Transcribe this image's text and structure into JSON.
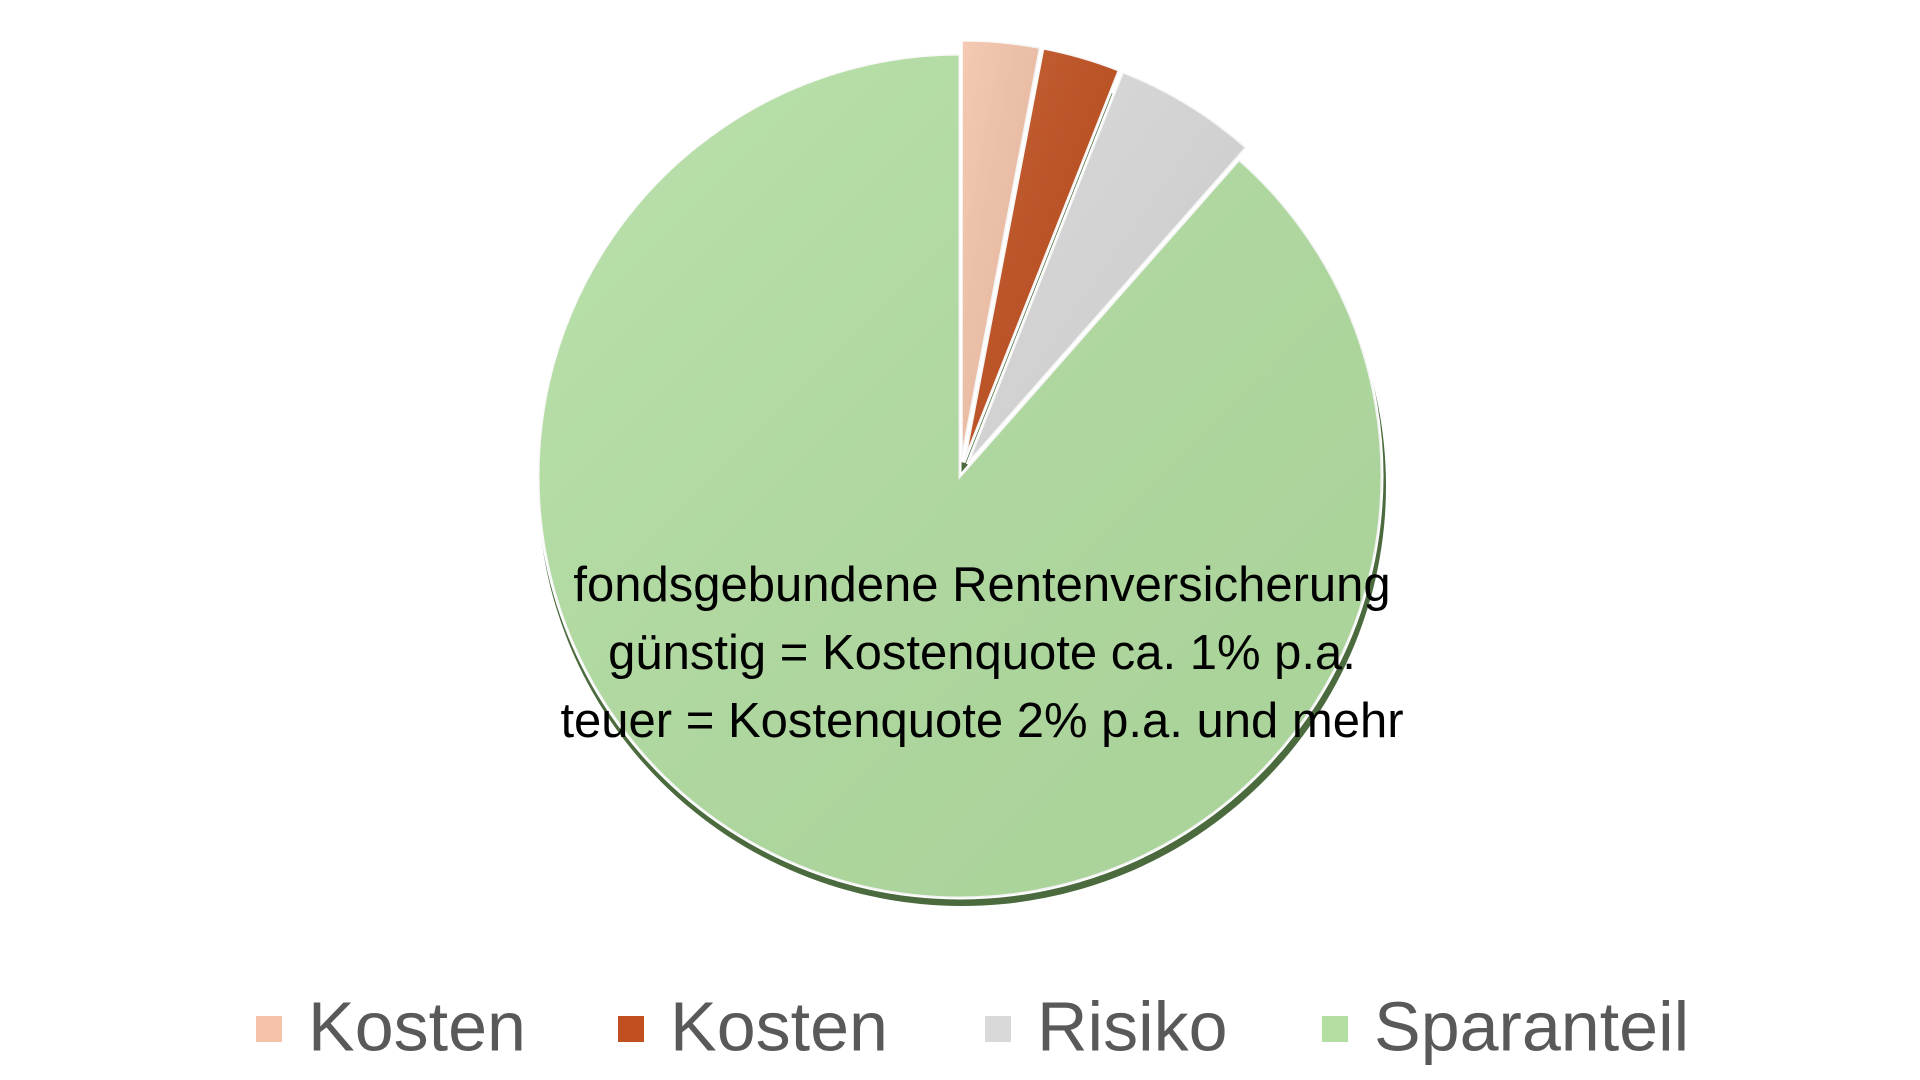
{
  "chart_data": {
    "type": "pie",
    "categories": [
      "Kosten",
      "Kosten",
      "Risiko",
      "Sparanteil"
    ],
    "values": [
      3,
      3,
      5.5,
      88.5
    ],
    "colors": [
      "#f4c3a9",
      "#c0501f",
      "#d9d9d9",
      "#b3dfa2"
    ],
    "exploded": [
      true,
      true,
      true,
      false
    ],
    "annotation": [
      "fondsgebundene Rentenversicherung",
      "günstig = Kostenquote ca. 1% p.a.",
      "teuer = Kostenquote 2% p.a. und mehr"
    ],
    "legend": "bottom"
  }
}
